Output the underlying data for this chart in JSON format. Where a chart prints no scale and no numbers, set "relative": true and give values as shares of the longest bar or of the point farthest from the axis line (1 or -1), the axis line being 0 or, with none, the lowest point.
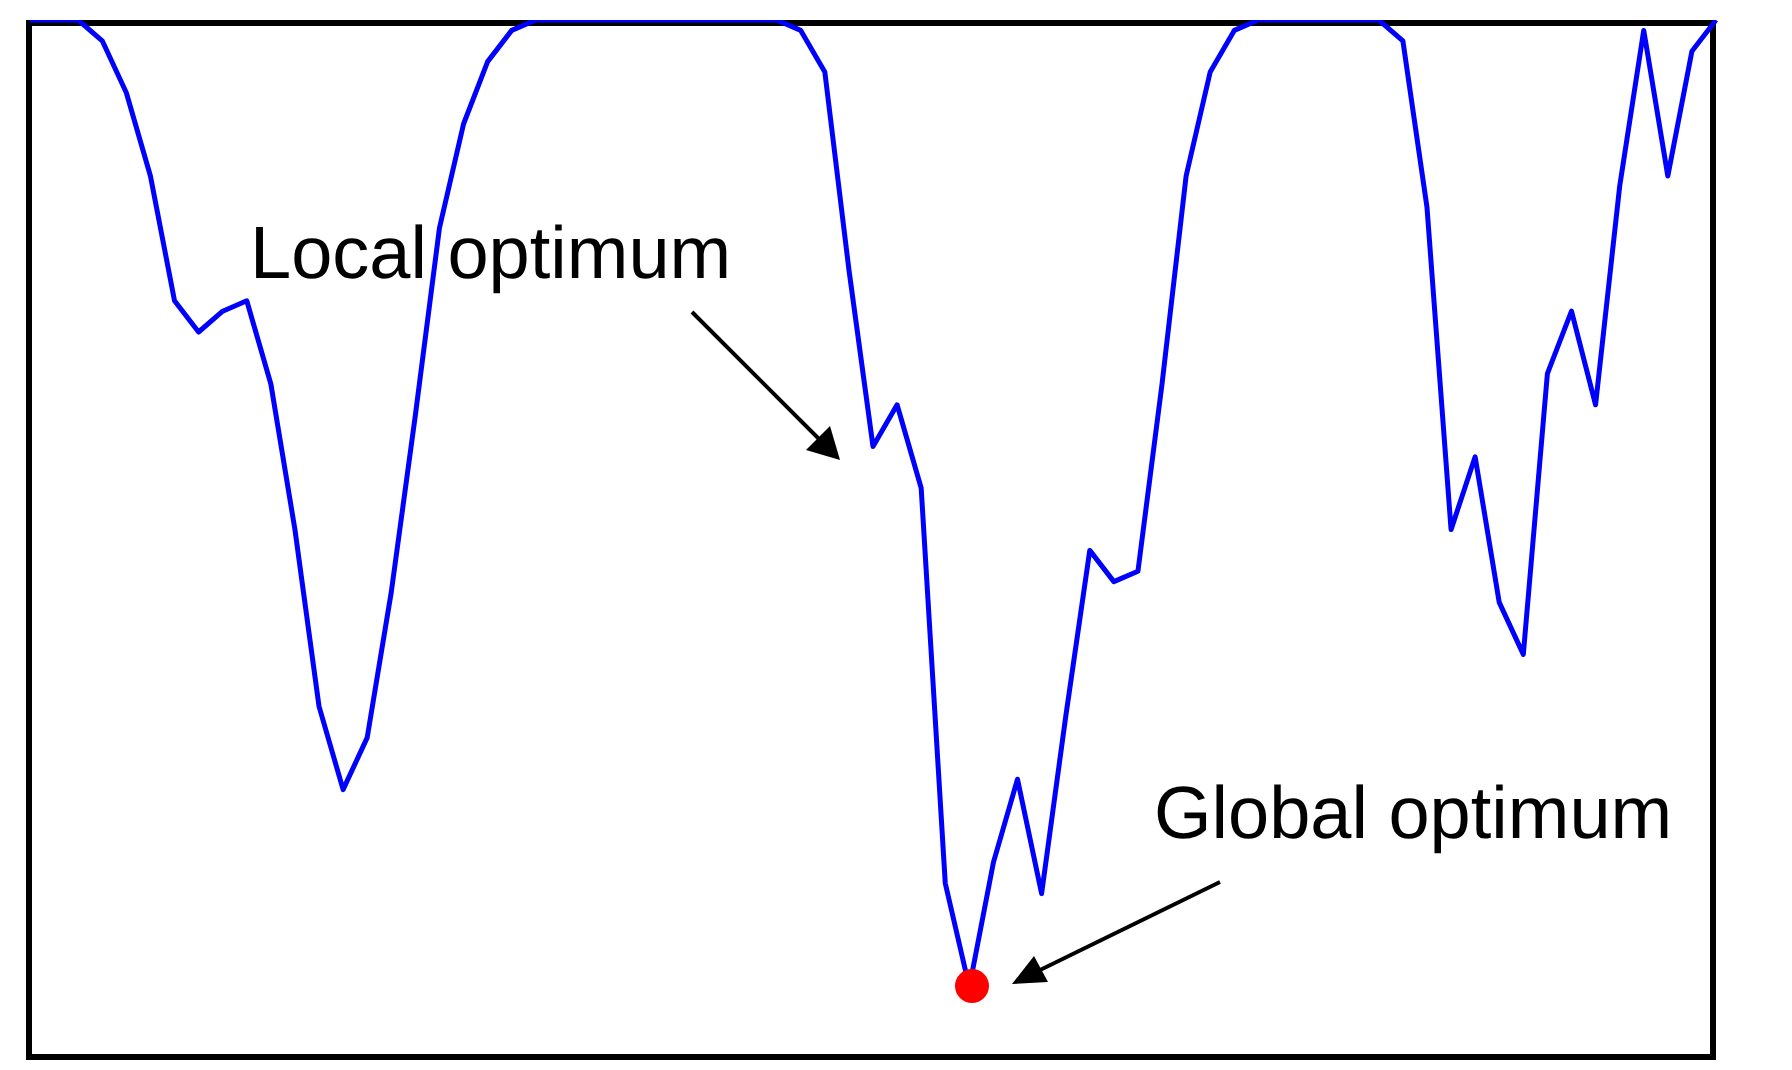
{
  "chart_data": {
    "type": "line",
    "relative": true,
    "tick_labels": false,
    "grid": false,
    "legend": false,
    "categories": [
      null,
      null,
      null,
      null,
      null,
      null,
      null,
      null,
      null,
      null,
      null,
      null,
      null,
      null,
      null,
      null,
      null,
      null,
      null,
      null,
      null,
      null,
      null,
      null,
      null,
      null,
      null,
      null,
      null,
      null,
      null,
      null,
      null,
      null,
      null,
      null,
      null,
      null,
      null,
      null,
      null,
      null,
      null,
      null,
      null,
      null,
      null,
      null,
      null,
      null,
      null,
      null,
      null,
      null,
      null,
      null,
      null,
      null,
      null,
      null,
      null,
      null,
      null,
      null,
      null,
      null,
      null,
      null,
      null,
      null,
      null
    ],
    "series": [
      {
        "color": "#0000ff",
        "marker": "none",
        "values": [
          1,
          1,
          1,
          0.98,
          0.93,
          0.85,
          0.73,
          0.7,
          0.72,
          0.73,
          0.65,
          0.51,
          0.34,
          0.26,
          0.31,
          0.45,
          0.62,
          0.8,
          0.9,
          0.96,
          0.99,
          1,
          1,
          1,
          1,
          1,
          1,
          1,
          1,
          1,
          1,
          1,
          0.99,
          0.95,
          0.76,
          0.59,
          0.63,
          0.55,
          0.17,
          0.07,
          0.19,
          0.27,
          0.16,
          0.33,
          0.49,
          0.46,
          0.47,
          0.65,
          0.85,
          0.95,
          0.99,
          1,
          1,
          1,
          1,
          1,
          1,
          0.98,
          0.82,
          0.51,
          0.58,
          0.44,
          0.39,
          0.66,
          0.72,
          0.63,
          0.84,
          0.99,
          0.85,
          0.97,
          1
        ]
      }
    ],
    "annotations": [
      "Local optimum",
      "Global optimum"
    ]
  }
}
